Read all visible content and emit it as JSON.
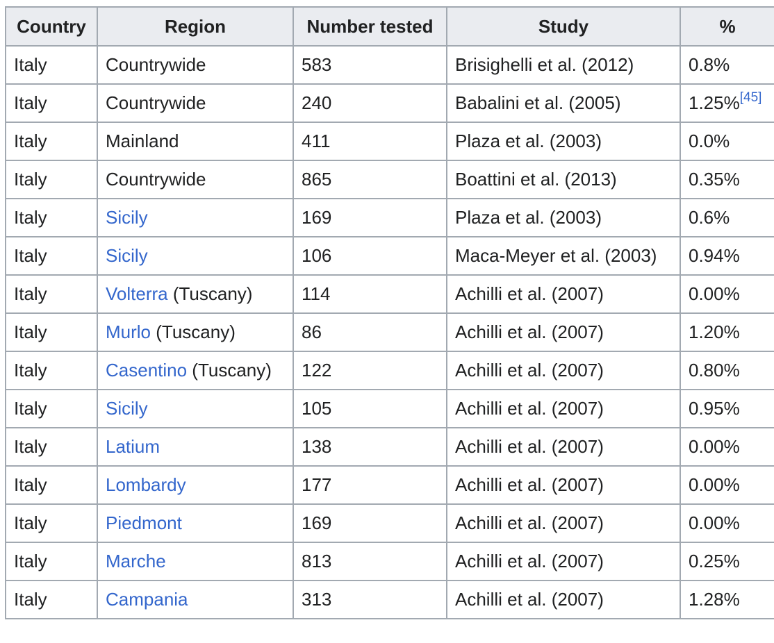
{
  "table": {
    "headers": [
      "Country",
      "Region",
      "Number tested",
      "Study",
      "%"
    ],
    "rows": [
      {
        "country": "Italy",
        "region": "Countrywide",
        "region_link": false,
        "region_note": "",
        "number": "583",
        "study": "Brisighelli et al. (2012)",
        "pct": "0.8%",
        "ref": ""
      },
      {
        "country": "Italy",
        "region": "Countrywide",
        "region_link": false,
        "region_note": "",
        "number": "240",
        "study": "Babalini et al. (2005)",
        "pct": "1.25%",
        "ref": "[45]"
      },
      {
        "country": "Italy",
        "region": "Mainland",
        "region_link": false,
        "region_note": "",
        "number": "411",
        "study": "Plaza et al. (2003)",
        "pct": "0.0%",
        "ref": ""
      },
      {
        "country": "Italy",
        "region": "Countrywide",
        "region_link": false,
        "region_note": "",
        "number": "865",
        "study": "Boattini et al. (2013)",
        "pct": "0.35%",
        "ref": ""
      },
      {
        "country": "Italy",
        "region": "Sicily",
        "region_link": true,
        "region_note": "",
        "number": "169",
        "study": "Plaza et al. (2003)",
        "pct": "0.6%",
        "ref": ""
      },
      {
        "country": "Italy",
        "region": "Sicily",
        "region_link": true,
        "region_note": "",
        "number": "106",
        "study": "Maca-Meyer et al. (2003)",
        "pct": "0.94%",
        "ref": ""
      },
      {
        "country": "Italy",
        "region": "Volterra",
        "region_link": true,
        "region_note": " (Tuscany)",
        "number": "114",
        "study": "Achilli et al. (2007)",
        "pct": "0.00%",
        "ref": ""
      },
      {
        "country": "Italy",
        "region": "Murlo",
        "region_link": true,
        "region_note": " (Tuscany)",
        "number": "86",
        "study": "Achilli et al. (2007)",
        "pct": "1.20%",
        "ref": ""
      },
      {
        "country": "Italy",
        "region": "Casentino",
        "region_link": true,
        "region_note": " (Tuscany)",
        "number": "122",
        "study": "Achilli et al. (2007)",
        "pct": "0.80%",
        "ref": ""
      },
      {
        "country": "Italy",
        "region": "Sicily",
        "region_link": true,
        "region_note": "",
        "number": "105",
        "study": "Achilli et al. (2007)",
        "pct": "0.95%",
        "ref": ""
      },
      {
        "country": "Italy",
        "region": "Latium",
        "region_link": true,
        "region_note": "",
        "number": "138",
        "study": "Achilli et al. (2007)",
        "pct": "0.00%",
        "ref": ""
      },
      {
        "country": "Italy",
        "region": "Lombardy",
        "region_link": true,
        "region_note": "",
        "number": "177",
        "study": "Achilli et al. (2007)",
        "pct": "0.00%",
        "ref": ""
      },
      {
        "country": "Italy",
        "region": "Piedmont",
        "region_link": true,
        "region_note": "",
        "number": "169",
        "study": "Achilli et al. (2007)",
        "pct": "0.00%",
        "ref": ""
      },
      {
        "country": "Italy",
        "region": "Marche",
        "region_link": true,
        "region_note": "",
        "number": "813",
        "study": "Achilli et al. (2007)",
        "pct": "0.25%",
        "ref": ""
      },
      {
        "country": "Italy",
        "region": "Campania",
        "region_link": true,
        "region_note": "",
        "number": "313",
        "study": "Achilli et al. (2007)",
        "pct": "1.28%",
        "ref": ""
      }
    ]
  },
  "colors": {
    "link": "#3366cc",
    "text": "#202122",
    "header_bg": "#eaecf0",
    "border": "#a2a9b1"
  }
}
